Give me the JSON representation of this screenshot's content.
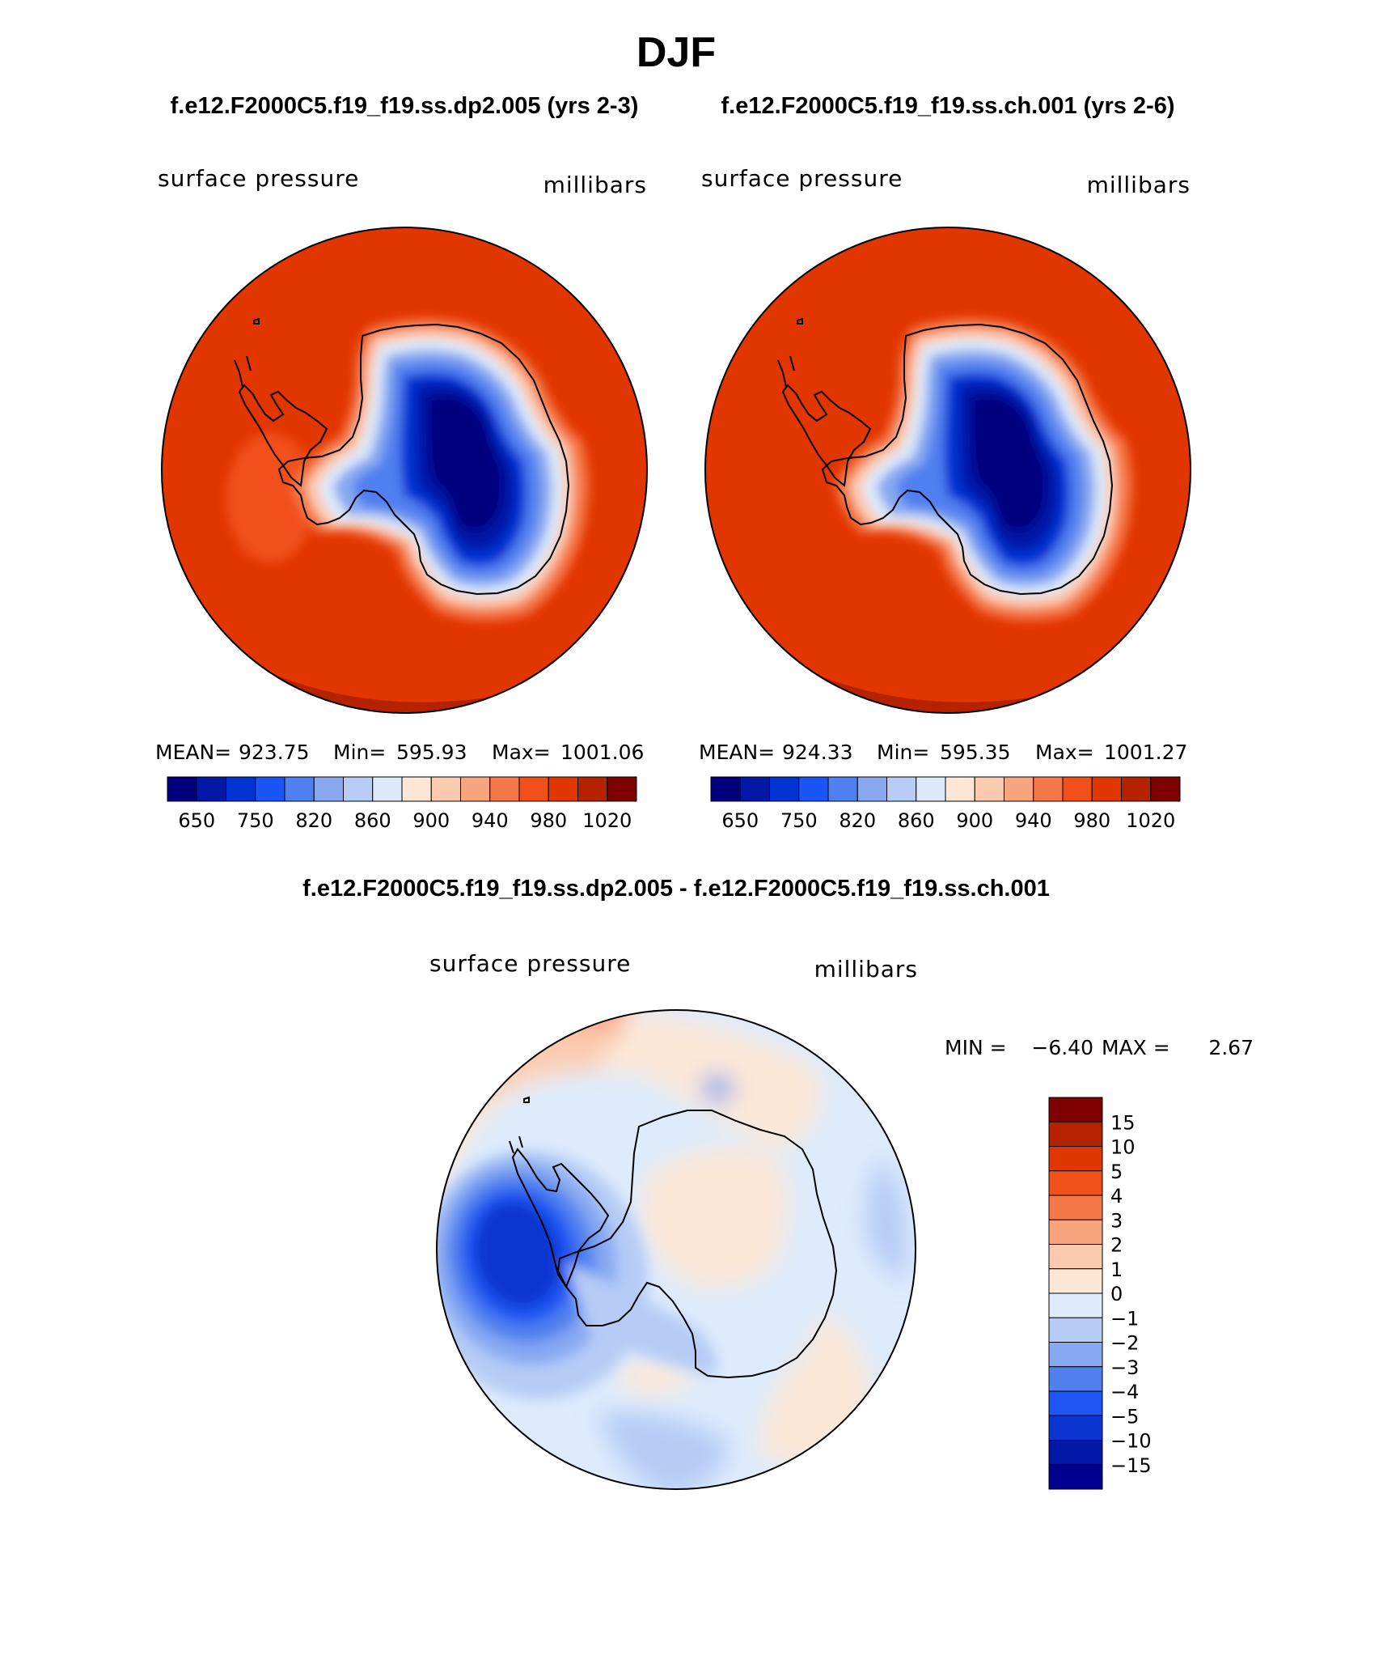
{
  "page": {
    "season": "DJF",
    "case_a_title": "f.e12.F2000C5.f19_f19.ss.dp2.005 (yrs 2-3)",
    "case_b_title": "f.e12.F2000C5.f19_f19.ss.ch.001 (yrs 2-6)",
    "diff_title": "f.e12.F2000C5.f19_f19.ss.dp2.005 - f.e12.F2000C5.f19_f19.ss.ch.001"
  },
  "colors": {
    "absolute_scale": [
      "#00007f",
      "#0018a5",
      "#0033d1",
      "#1a55f5",
      "#4f7ff0",
      "#87a8f0",
      "#b7cdf5",
      "#dde9fb",
      "#fde8d8",
      "#fbcbb0",
      "#f7a47f",
      "#f57848",
      "#f2501b",
      "#e23600",
      "#b52200",
      "#7f0000"
    ],
    "diff_scale": [
      "#00008f",
      "#0018a5",
      "#0c34d0",
      "#1e55f3",
      "#4f80ee",
      "#86a9f2",
      "#b6ccf6",
      "#ddebfc",
      "#fde8d8",
      "#fbcbb0",
      "#f7a47f",
      "#f57848",
      "#f2501b",
      "#e23600",
      "#b52200",
      "#7f0000"
    ],
    "coastline": "#000000"
  },
  "chart_data": [
    {
      "type": "heatmap",
      "panel": "case_a",
      "variable": "surface pressure",
      "units": "millibars",
      "projection": "south polar stereographic",
      "stats": {
        "mean_label": "MEAN=",
        "mean": "923.75",
        "min_label": "Min=",
        "min": "595.93",
        "max_label": "Max=",
        "max": "1001.06"
      },
      "contour_levels": [
        650,
        700,
        750,
        800,
        820,
        840,
        860,
        880,
        900,
        920,
        940,
        960,
        980,
        1000,
        1020
      ],
      "colorbar_ticks": [
        "650",
        "750",
        "820",
        "860",
        "900",
        "940",
        "980",
        "1020"
      ]
    },
    {
      "type": "heatmap",
      "panel": "case_b",
      "variable": "surface pressure",
      "units": "millibars",
      "projection": "south polar stereographic",
      "stats": {
        "mean_label": "MEAN=",
        "mean": "924.33",
        "min_label": "Min=",
        "min": "595.35",
        "max_label": "Max=",
        "max": "1001.27"
      },
      "contour_levels": [
        650,
        700,
        750,
        800,
        820,
        840,
        860,
        880,
        900,
        920,
        940,
        960,
        980,
        1000,
        1020
      ],
      "colorbar_ticks": [
        "650",
        "750",
        "820",
        "860",
        "900",
        "940",
        "980",
        "1020"
      ]
    },
    {
      "type": "heatmap",
      "panel": "difference",
      "variable": "surface pressure",
      "units": "millibars",
      "projection": "south polar stereographic",
      "stats": {
        "min_label": "MIN =",
        "min": "−6.40",
        "max_label": "MAX =",
        "max": "2.67"
      },
      "contour_levels": [
        -15,
        -10,
        -5,
        -4,
        -3,
        -2,
        -1,
        0,
        1,
        2,
        3,
        4,
        5,
        10,
        15
      ],
      "colorbar_ticks": [
        "15",
        "10",
        "5",
        "4",
        "3",
        "2",
        "1",
        "0",
        "−1",
        "−2",
        "−3",
        "−4",
        "−5",
        "−10",
        "−15"
      ]
    }
  ]
}
